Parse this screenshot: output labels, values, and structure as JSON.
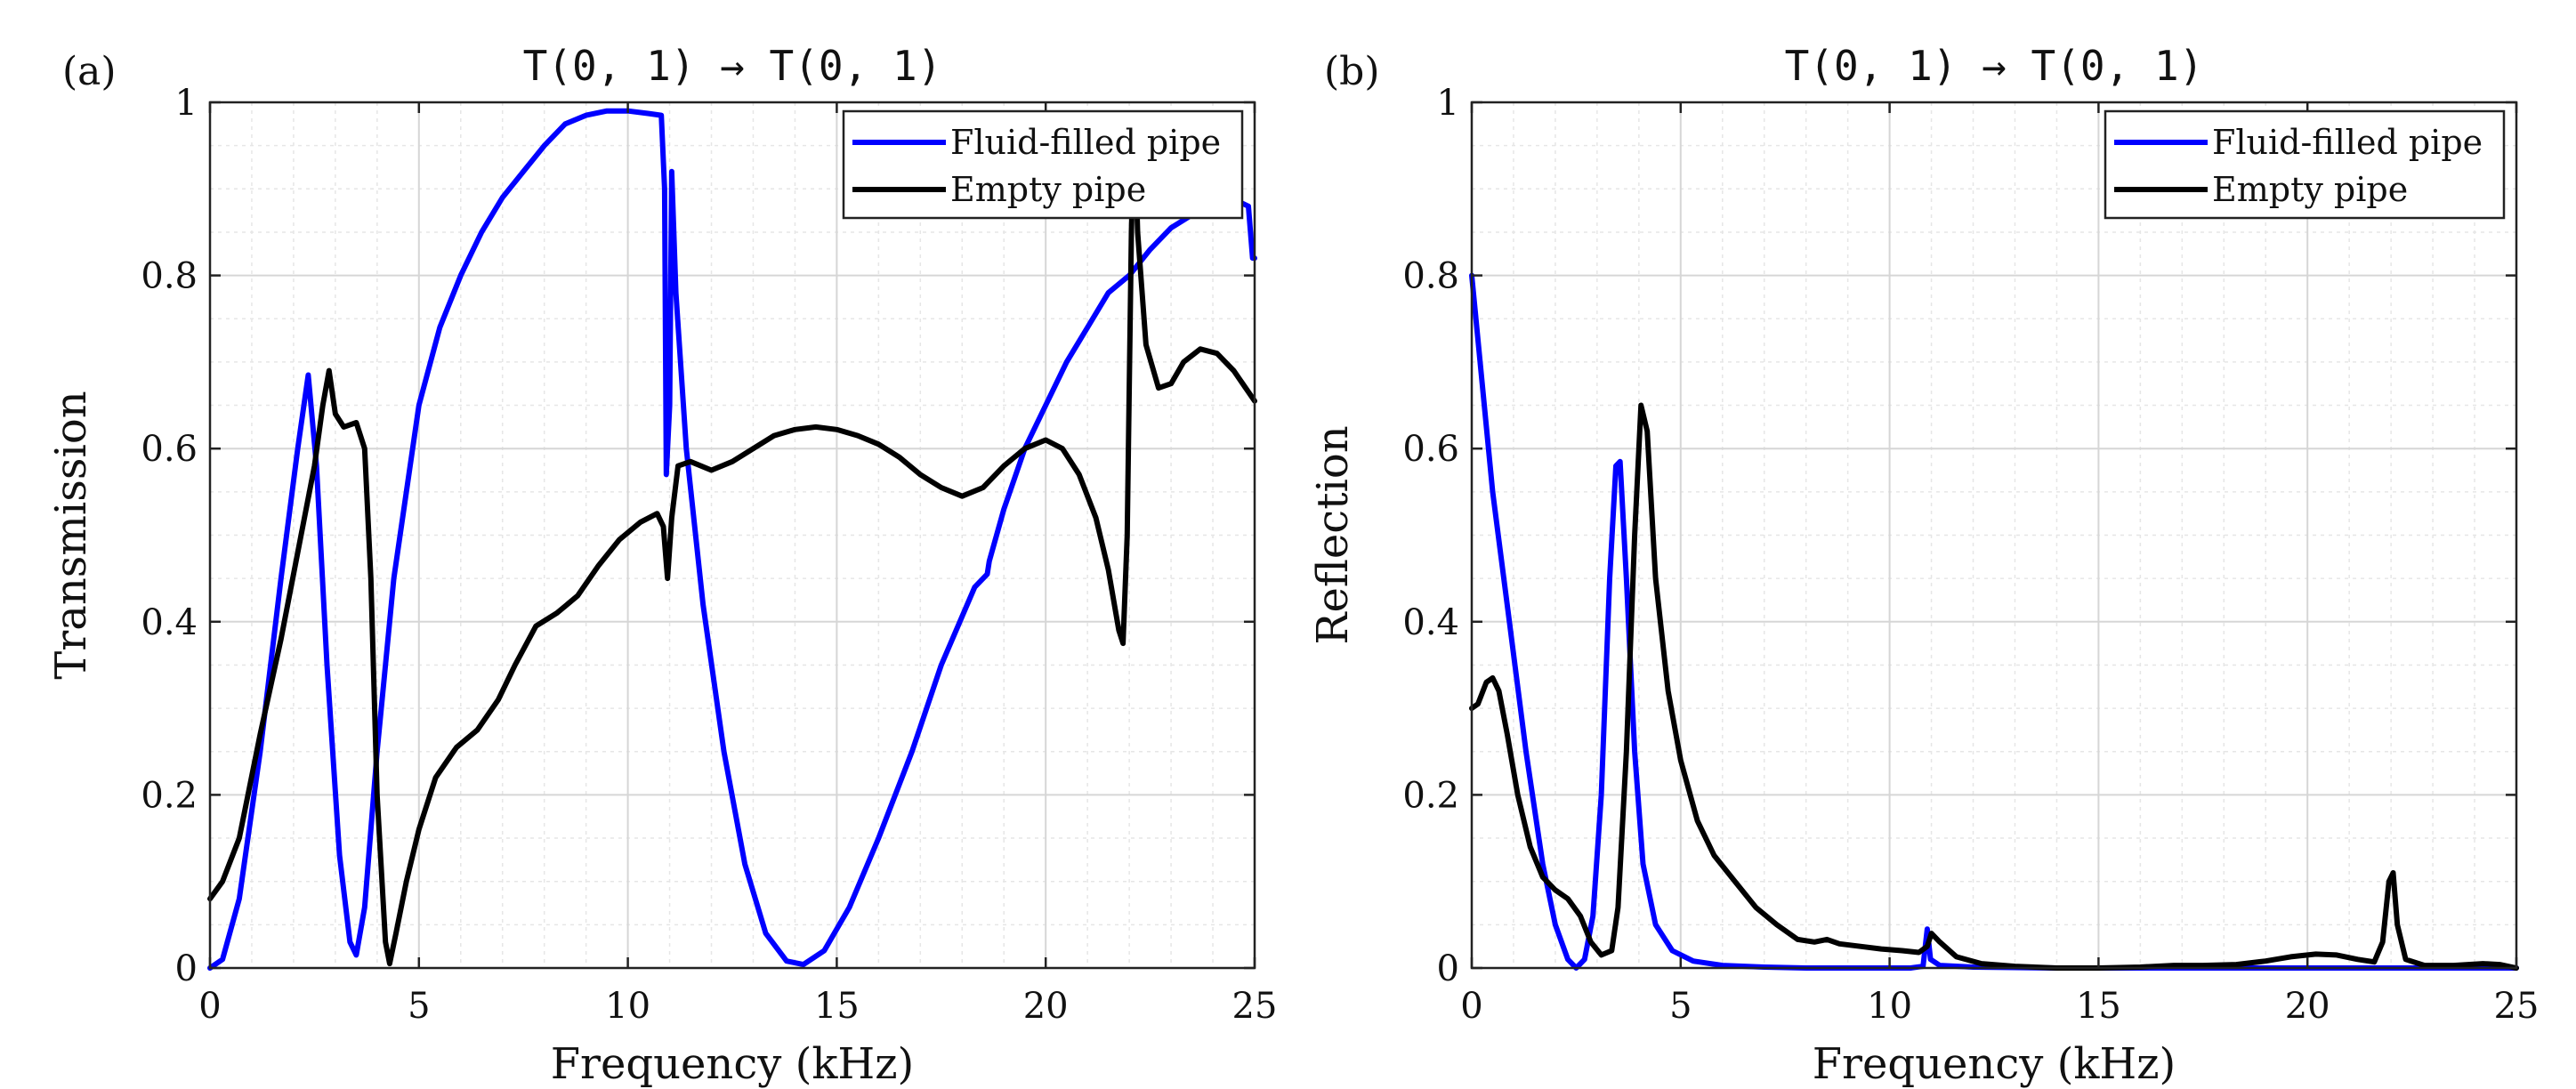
{
  "chart_data": [
    {
      "type": "line",
      "panel_label": "(a)",
      "title": "T(0, 1) → T(0, 1)",
      "xlabel": "Frequency (kHz)",
      "ylabel": "Transmission",
      "xlim": [
        0,
        25
      ],
      "ylim": [
        0,
        1
      ],
      "xticks": [
        0,
        5,
        10,
        15,
        20,
        25
      ],
      "yticks": [
        0,
        0.2,
        0.4,
        0.6,
        0.8,
        1
      ],
      "ytick_labels": [
        "0",
        "0.2",
        "0.4",
        "0.6",
        "0.8",
        "1"
      ],
      "grid": true,
      "legend": "top-right",
      "series": [
        {
          "name": "Fluid-filled pipe",
          "color": "#0000ff",
          "points": [
            [
              0,
              0
            ],
            [
              0.3,
              0.01
            ],
            [
              0.7,
              0.08
            ],
            [
              1.2,
              0.25
            ],
            [
              1.7,
              0.45
            ],
            [
              2.1,
              0.6
            ],
            [
              2.35,
              0.685
            ],
            [
              2.55,
              0.58
            ],
            [
              2.8,
              0.35
            ],
            [
              3.1,
              0.13
            ],
            [
              3.35,
              0.03
            ],
            [
              3.5,
              0.015
            ],
            [
              3.7,
              0.07
            ],
            [
              4.0,
              0.25
            ],
            [
              4.4,
              0.45
            ],
            [
              5.0,
              0.65
            ],
            [
              5.5,
              0.74
            ],
            [
              6.0,
              0.8
            ],
            [
              6.5,
              0.85
            ],
            [
              7.0,
              0.89
            ],
            [
              7.5,
              0.92
            ],
            [
              8.0,
              0.95
            ],
            [
              8.5,
              0.975
            ],
            [
              9.0,
              0.985
            ],
            [
              9.5,
              0.99
            ],
            [
              10.0,
              0.99
            ],
            [
              10.5,
              0.987
            ],
            [
              10.8,
              0.985
            ],
            [
              10.88,
              0.9
            ],
            [
              10.92,
              0.57
            ],
            [
              11.0,
              0.65
            ],
            [
              11.05,
              0.92
            ],
            [
              11.15,
              0.78
            ],
            [
              11.4,
              0.6
            ],
            [
              11.8,
              0.42
            ],
            [
              12.3,
              0.25
            ],
            [
              12.8,
              0.12
            ],
            [
              13.3,
              0.04
            ],
            [
              13.8,
              0.008
            ],
            [
              14.2,
              0.004
            ],
            [
              14.7,
              0.02
            ],
            [
              15.3,
              0.07
            ],
            [
              16.0,
              0.15
            ],
            [
              16.8,
              0.25
            ],
            [
              17.5,
              0.35
            ],
            [
              18.3,
              0.44
            ],
            [
              18.6,
              0.455
            ],
            [
              18.65,
              0.47
            ],
            [
              19.0,
              0.53
            ],
            [
              19.5,
              0.6
            ],
            [
              20.0,
              0.65
            ],
            [
              20.5,
              0.7
            ],
            [
              21.0,
              0.74
            ],
            [
              21.5,
              0.78
            ],
            [
              22.0,
              0.8
            ],
            [
              22.5,
              0.83
            ],
            [
              23.0,
              0.855
            ],
            [
              23.5,
              0.87
            ],
            [
              24.0,
              0.88
            ],
            [
              24.5,
              0.888
            ],
            [
              24.85,
              0.88
            ],
            [
              24.95,
              0.82
            ],
            [
              25.0,
              0.82
            ]
          ]
        },
        {
          "name": "Empty pipe",
          "color": "#000000",
          "points": [
            [
              0,
              0.08
            ],
            [
              0.3,
              0.1
            ],
            [
              0.7,
              0.15
            ],
            [
              1.2,
              0.27
            ],
            [
              1.7,
              0.38
            ],
            [
              2.1,
              0.48
            ],
            [
              2.5,
              0.58
            ],
            [
              2.7,
              0.65
            ],
            [
              2.85,
              0.69
            ],
            [
              3.0,
              0.64
            ],
            [
              3.2,
              0.625
            ],
            [
              3.5,
              0.63
            ],
            [
              3.7,
              0.6
            ],
            [
              3.85,
              0.45
            ],
            [
              4.0,
              0.2
            ],
            [
              4.2,
              0.03
            ],
            [
              4.3,
              0.005
            ],
            [
              4.45,
              0.04
            ],
            [
              4.7,
              0.1
            ],
            [
              5.0,
              0.16
            ],
            [
              5.4,
              0.22
            ],
            [
              5.9,
              0.255
            ],
            [
              6.4,
              0.275
            ],
            [
              6.9,
              0.31
            ],
            [
              7.3,
              0.35
            ],
            [
              7.8,
              0.395
            ],
            [
              8.3,
              0.41
            ],
            [
              8.8,
              0.43
            ],
            [
              9.3,
              0.465
            ],
            [
              9.8,
              0.495
            ],
            [
              10.3,
              0.515
            ],
            [
              10.7,
              0.525
            ],
            [
              10.85,
              0.51
            ],
            [
              10.95,
              0.45
            ],
            [
              11.05,
              0.52
            ],
            [
              11.2,
              0.58
            ],
            [
              11.5,
              0.585
            ],
            [
              12.0,
              0.575
            ],
            [
              12.5,
              0.585
            ],
            [
              13.0,
              0.6
            ],
            [
              13.5,
              0.615
            ],
            [
              14.0,
              0.622
            ],
            [
              14.5,
              0.625
            ],
            [
              15.0,
              0.622
            ],
            [
              15.5,
              0.615
            ],
            [
              16.0,
              0.605
            ],
            [
              16.5,
              0.59
            ],
            [
              17.0,
              0.57
            ],
            [
              17.5,
              0.555
            ],
            [
              18.0,
              0.545
            ],
            [
              18.5,
              0.555
            ],
            [
              19.0,
              0.58
            ],
            [
              19.5,
              0.6
            ],
            [
              20.0,
              0.61
            ],
            [
              20.4,
              0.6
            ],
            [
              20.8,
              0.57
            ],
            [
              21.2,
              0.52
            ],
            [
              21.5,
              0.46
            ],
            [
              21.75,
              0.39
            ],
            [
              21.85,
              0.375
            ],
            [
              21.95,
              0.5
            ],
            [
              22.05,
              0.85
            ],
            [
              22.12,
              0.985
            ],
            [
              22.2,
              0.85
            ],
            [
              22.4,
              0.72
            ],
            [
              22.7,
              0.67
            ],
            [
              23.0,
              0.675
            ],
            [
              23.3,
              0.7
            ],
            [
              23.7,
              0.715
            ],
            [
              24.1,
              0.71
            ],
            [
              24.5,
              0.69
            ],
            [
              25.0,
              0.655
            ]
          ]
        }
      ]
    },
    {
      "type": "line",
      "panel_label": "(b)",
      "title": "T(0, 1) → T(0, 1)",
      "xlabel": "Frequency (kHz)",
      "ylabel": "Reflection",
      "xlim": [
        0,
        25
      ],
      "ylim": [
        0,
        1
      ],
      "xticks": [
        0,
        5,
        10,
        15,
        20,
        25
      ],
      "yticks": [
        0,
        0.2,
        0.4,
        0.6,
        0.8,
        1
      ],
      "ytick_labels": [
        "0",
        "0.2",
        "0.4",
        "0.6",
        "0.8",
        "1"
      ],
      "grid": true,
      "legend": "top-right",
      "series": [
        {
          "name": "Fluid-filled pipe",
          "color": "#0000ff",
          "points": [
            [
              0,
              0.8
            ],
            [
              0.2,
              0.7
            ],
            [
              0.5,
              0.55
            ],
            [
              0.9,
              0.4
            ],
            [
              1.3,
              0.25
            ],
            [
              1.7,
              0.12
            ],
            [
              2.0,
              0.05
            ],
            [
              2.3,
              0.01
            ],
            [
              2.5,
              0.0
            ],
            [
              2.7,
              0.01
            ],
            [
              2.9,
              0.06
            ],
            [
              3.1,
              0.2
            ],
            [
              3.3,
              0.45
            ],
            [
              3.45,
              0.58
            ],
            [
              3.55,
              0.585
            ],
            [
              3.7,
              0.45
            ],
            [
              3.9,
              0.25
            ],
            [
              4.1,
              0.12
            ],
            [
              4.4,
              0.05
            ],
            [
              4.8,
              0.02
            ],
            [
              5.3,
              0.008
            ],
            [
              6.0,
              0.003
            ],
            [
              7.0,
              0.001
            ],
            [
              8.0,
              0.0
            ],
            [
              9.0,
              0.0
            ],
            [
              10.5,
              0.0
            ],
            [
              10.8,
              0.002
            ],
            [
              10.9,
              0.045
            ],
            [
              10.98,
              0.01
            ],
            [
              11.2,
              0.003
            ],
            [
              12.0,
              0.001
            ],
            [
              14.0,
              0.0
            ],
            [
              16.0,
              0.0
            ],
            [
              18.0,
              0.0
            ],
            [
              20.0,
              0.0
            ],
            [
              22.0,
              0.0
            ],
            [
              25.0,
              0.0
            ]
          ]
        },
        {
          "name": "Empty pipe",
          "color": "#000000",
          "points": [
            [
              0,
              0.3
            ],
            [
              0.15,
              0.305
            ],
            [
              0.35,
              0.33
            ],
            [
              0.5,
              0.335
            ],
            [
              0.65,
              0.32
            ],
            [
              0.85,
              0.27
            ],
            [
              1.1,
              0.2
            ],
            [
              1.4,
              0.14
            ],
            [
              1.7,
              0.105
            ],
            [
              2.0,
              0.09
            ],
            [
              2.3,
              0.08
            ],
            [
              2.6,
              0.06
            ],
            [
              2.85,
              0.03
            ],
            [
              3.1,
              0.015
            ],
            [
              3.35,
              0.02
            ],
            [
              3.5,
              0.07
            ],
            [
              3.7,
              0.25
            ],
            [
              3.9,
              0.5
            ],
            [
              4.05,
              0.65
            ],
            [
              4.2,
              0.62
            ],
            [
              4.4,
              0.45
            ],
            [
              4.7,
              0.32
            ],
            [
              5.0,
              0.24
            ],
            [
              5.4,
              0.17
            ],
            [
              5.8,
              0.13
            ],
            [
              6.3,
              0.1
            ],
            [
              6.8,
              0.07
            ],
            [
              7.3,
              0.05
            ],
            [
              7.8,
              0.033
            ],
            [
              8.2,
              0.03
            ],
            [
              8.5,
              0.033
            ],
            [
              8.8,
              0.028
            ],
            [
              9.3,
              0.025
            ],
            [
              9.8,
              0.022
            ],
            [
              10.3,
              0.02
            ],
            [
              10.7,
              0.018
            ],
            [
              10.9,
              0.025
            ],
            [
              11.0,
              0.04
            ],
            [
              11.2,
              0.03
            ],
            [
              11.6,
              0.013
            ],
            [
              12.2,
              0.005
            ],
            [
              13.0,
              0.002
            ],
            [
              14.0,
              0.0
            ],
            [
              15.0,
              0.0
            ],
            [
              16.0,
              0.001
            ],
            [
              16.8,
              0.003
            ],
            [
              17.5,
              0.003
            ],
            [
              18.3,
              0.004
            ],
            [
              19.0,
              0.008
            ],
            [
              19.6,
              0.013
            ],
            [
              20.2,
              0.016
            ],
            [
              20.7,
              0.015
            ],
            [
              21.2,
              0.01
            ],
            [
              21.6,
              0.007
            ],
            [
              21.8,
              0.03
            ],
            [
              21.95,
              0.1
            ],
            [
              22.05,
              0.11
            ],
            [
              22.15,
              0.05
            ],
            [
              22.35,
              0.01
            ],
            [
              22.8,
              0.003
            ],
            [
              23.5,
              0.003
            ],
            [
              24.2,
              0.005
            ],
            [
              24.6,
              0.004
            ],
            [
              25.0,
              0.0
            ]
          ]
        }
      ]
    }
  ]
}
